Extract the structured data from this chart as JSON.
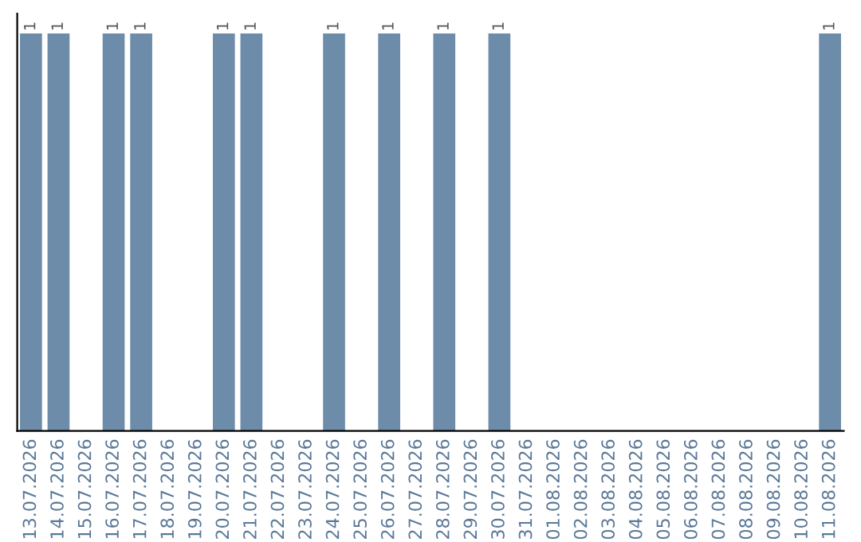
{
  "chart_data": {
    "type": "bar",
    "categories": [
      "13.07.2026",
      "14.07.2026",
      "15.07.2026",
      "16.07.2026",
      "17.07.2026",
      "18.07.2026",
      "19.07.2026",
      "20.07.2026",
      "21.07.2026",
      "22.07.2026",
      "23.07.2026",
      "24.07.2026",
      "25.07.2026",
      "26.07.2026",
      "27.07.2026",
      "28.07.2026",
      "29.07.2026",
      "30.07.2026",
      "31.07.2026",
      "01.08.2026",
      "02.08.2026",
      "03.08.2026",
      "04.08.2026",
      "05.08.2026",
      "06.08.2026",
      "07.08.2026",
      "08.08.2026",
      "09.08.2026",
      "10.08.2026",
      "11.08.2026"
    ],
    "values": [
      1,
      1,
      0,
      1,
      1,
      0,
      0,
      1,
      1,
      0,
      0,
      1,
      0,
      1,
      0,
      1,
      0,
      1,
      0,
      0,
      0,
      0,
      0,
      0,
      0,
      0,
      0,
      0,
      0,
      1
    ],
    "value_labels": [
      "1",
      "1",
      null,
      "1",
      "1",
      null,
      null,
      "1",
      "1",
      null,
      null,
      "1",
      null,
      "1",
      null,
      "1",
      null,
      "1",
      null,
      null,
      null,
      null,
      null,
      null,
      null,
      null,
      null,
      null,
      null,
      "1"
    ],
    "color": "#6d8caa",
    "tick_labels": "x",
    "grid": false,
    "legend": false
  }
}
